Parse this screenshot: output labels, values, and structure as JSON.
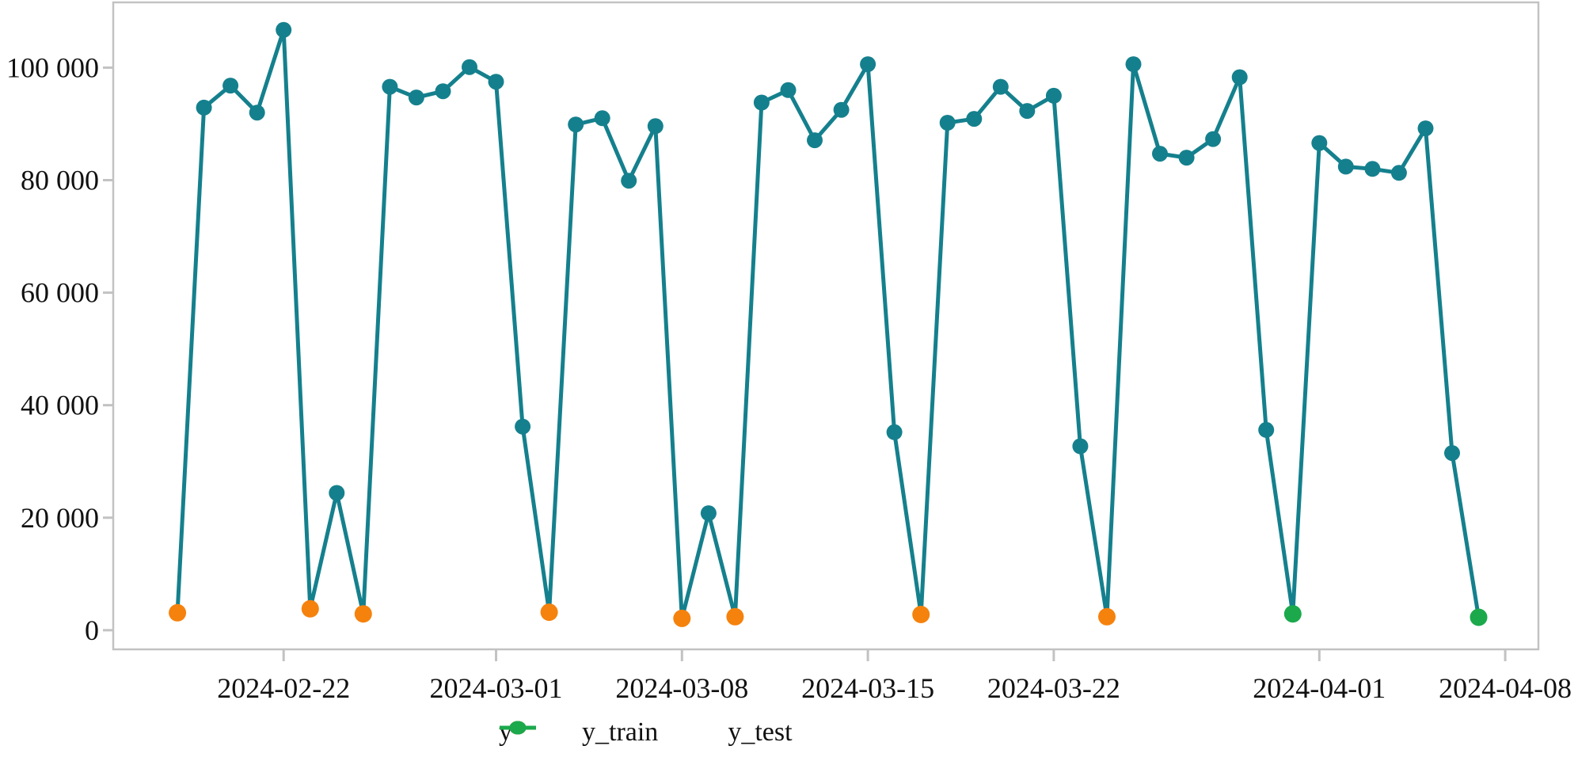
{
  "legend": {
    "items": [
      {
        "label": "y",
        "color": "#15808d"
      },
      {
        "label": "y_train",
        "color": "#f5820d"
      },
      {
        "label": "y_test",
        "color": "#1ba94c"
      }
    ]
  },
  "chart_data": {
    "type": "line",
    "title": "",
    "xlabel": "",
    "ylabel": "",
    "grid": false,
    "legend_position": "bottom",
    "axis_color": "#c2c2c2",
    "text_color": "#111111",
    "x_axis": {
      "domain": [
        "2024-02-15T14:00:00Z",
        "2024-04-09T06:00:00Z"
      ],
      "ticks": [
        "2024-02-22",
        "2024-03-01",
        "2024-03-08",
        "2024-03-15",
        "2024-03-22",
        "2024-04-01",
        "2024-04-08"
      ]
    },
    "y_axis": {
      "domain": [
        -3400,
        111600
      ],
      "ticks": [
        {
          "value": 0,
          "label": "0"
        },
        {
          "value": 20000,
          "label": "20 000"
        },
        {
          "value": 40000,
          "label": "40 000"
        },
        {
          "value": 60000,
          "label": "60 000"
        },
        {
          "value": 80000,
          "label": "80 000"
        },
        {
          "value": 100000,
          "label": "100 000"
        }
      ]
    },
    "series": [
      {
        "name": "y",
        "color": "#15808d",
        "draw_line": true,
        "line_width": 5,
        "marker_radius": 10,
        "points": [
          [
            "2024-02-18",
            3100
          ],
          [
            "2024-02-19",
            92900
          ],
          [
            "2024-02-20",
            96800
          ],
          [
            "2024-02-21",
            92000
          ],
          [
            "2024-02-22",
            106700
          ],
          [
            "2024-02-23",
            3800
          ],
          [
            "2024-02-24",
            24400
          ],
          [
            "2024-02-25",
            2900
          ],
          [
            "2024-02-26",
            96600
          ],
          [
            "2024-02-27",
            94700
          ],
          [
            "2024-02-28",
            95800
          ],
          [
            "2024-02-29",
            100100
          ],
          [
            "2024-03-01",
            97500
          ],
          [
            "2024-03-02",
            36200
          ],
          [
            "2024-03-03",
            3200
          ],
          [
            "2024-03-04",
            89900
          ],
          [
            "2024-03-05",
            91000
          ],
          [
            "2024-03-06",
            79900
          ],
          [
            "2024-03-07",
            89600
          ],
          [
            "2024-03-08",
            2100
          ],
          [
            "2024-03-09",
            20800
          ],
          [
            "2024-03-10",
            2400
          ],
          [
            "2024-03-11",
            93800
          ],
          [
            "2024-03-12",
            96000
          ],
          [
            "2024-03-13",
            87100
          ],
          [
            "2024-03-14",
            92500
          ],
          [
            "2024-03-15",
            100600
          ],
          [
            "2024-03-16",
            35200
          ],
          [
            "2024-03-17",
            2800
          ],
          [
            "2024-03-18",
            90200
          ],
          [
            "2024-03-19",
            90900
          ],
          [
            "2024-03-20",
            96600
          ],
          [
            "2024-03-21",
            92300
          ],
          [
            "2024-03-22",
            95000
          ],
          [
            "2024-03-23",
            32700
          ],
          [
            "2024-03-24",
            2400
          ],
          [
            "2024-03-25",
            100600
          ],
          [
            "2024-03-26",
            84700
          ],
          [
            "2024-03-27",
            84000
          ],
          [
            "2024-03-28",
            87300
          ],
          [
            "2024-03-29",
            98300
          ],
          [
            "2024-03-30",
            35600
          ],
          [
            "2024-03-31",
            2900
          ],
          [
            "2024-04-01",
            86600
          ],
          [
            "2024-04-02",
            82400
          ],
          [
            "2024-04-03",
            82000
          ],
          [
            "2024-04-04",
            81300
          ],
          [
            "2024-04-05",
            89200
          ],
          [
            "2024-04-06",
            31500
          ],
          [
            "2024-04-07",
            2300
          ]
        ]
      },
      {
        "name": "y_train",
        "color": "#f5820d",
        "draw_line": false,
        "marker_radius": 11,
        "points": [
          [
            "2024-02-18",
            3100
          ],
          [
            "2024-02-23",
            3800
          ],
          [
            "2024-02-25",
            2900
          ],
          [
            "2024-03-03",
            3200
          ],
          [
            "2024-03-08",
            2100
          ],
          [
            "2024-03-10",
            2400
          ],
          [
            "2024-03-17",
            2800
          ],
          [
            "2024-03-24",
            2400
          ]
        ]
      },
      {
        "name": "y_test",
        "color": "#1ba94c",
        "draw_line": false,
        "marker_radius": 11,
        "points": [
          [
            "2024-03-31",
            2900
          ],
          [
            "2024-04-07",
            2300
          ]
        ]
      }
    ]
  }
}
